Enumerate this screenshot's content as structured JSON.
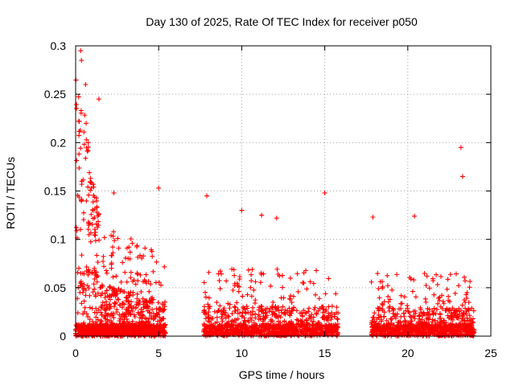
{
  "chart_data": {
    "type": "scatter",
    "title": "Day 130 of 2025, Rate Of TEC Index for receiver p050",
    "xlabel": "GPS time / hours",
    "ylabel": "ROTI / TECUs",
    "xlim": [
      0,
      25
    ],
    "ylim": [
      0,
      0.3
    ],
    "grid": true,
    "marker": "+",
    "color": "#ff0000",
    "x_ticks": [
      0,
      5,
      10,
      15,
      20,
      25
    ],
    "x_tick_labels": [
      "0",
      "5",
      "10",
      "15",
      "20",
      "25"
    ],
    "y_ticks": [
      0,
      0.05,
      0.1,
      0.15,
      0.2,
      0.25,
      0.3
    ],
    "y_tick_labels": [
      "0",
      "0.05",
      "0.1",
      "0.15",
      "0.2",
      "0.25",
      "0.3"
    ],
    "notable_points": [
      {
        "x": 0.3,
        "y": 0.295
      },
      {
        "x": 0.35,
        "y": 0.285
      },
      {
        "x": 0.6,
        "y": 0.26
      },
      {
        "x": 1.4,
        "y": 0.245
      },
      {
        "x": 23.2,
        "y": 0.195
      },
      {
        "x": 23.3,
        "y": 0.165
      },
      {
        "x": 5.0,
        "y": 0.153
      },
      {
        "x": 15.0,
        "y": 0.148
      },
      {
        "x": 2.3,
        "y": 0.148
      },
      {
        "x": 7.9,
        "y": 0.145
      },
      {
        "x": 10.0,
        "y": 0.13
      },
      {
        "x": 11.2,
        "y": 0.125
      },
      {
        "x": 20.4,
        "y": 0.124
      },
      {
        "x": 17.9,
        "y": 0.123
      },
      {
        "x": 12.1,
        "y": 0.122
      }
    ],
    "segments": [
      {
        "x_start": 0.0,
        "x_end": 5.4,
        "count": 1300,
        "typical_max": 0.1
      },
      {
        "x_start": 7.7,
        "x_end": 15.8,
        "count": 1100,
        "typical_max": 0.06
      },
      {
        "x_start": 17.8,
        "x_end": 24.0,
        "count": 900,
        "typical_max": 0.06
      }
    ]
  }
}
